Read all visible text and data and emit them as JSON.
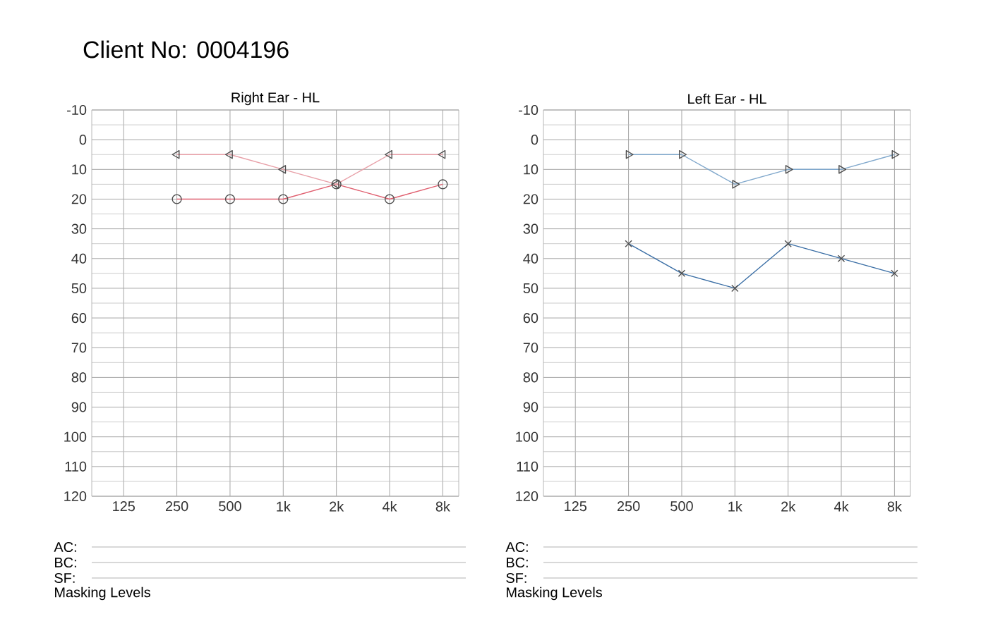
{
  "chart_data": [
    {
      "type": "line",
      "title": "Client No: 0004196",
      "subtitle": "Right Ear - HL",
      "categories": [
        "125",
        "250",
        "500",
        "1k",
        "2k",
        "4k",
        "8k"
      ],
      "series": [
        {
          "color": "#e06070",
          "marker": "circle",
          "values": [
            null,
            20,
            20,
            20,
            15,
            20,
            15
          ]
        },
        {
          "color": "#e8a0a8",
          "marker": "triangle",
          "values": [
            null,
            5,
            5,
            10,
            15,
            5,
            5
          ]
        }
      ],
      "ylim": [
        120,
        -10
      ],
      "yticks": [
        -10,
        0,
        10,
        20,
        30,
        40,
        50,
        60,
        70,
        80,
        90,
        100,
        110,
        120
      ],
      "grid": true,
      "annotations": [
        "AC:",
        "BC:",
        "SF:",
        "Masking Levels"
      ]
    },
    {
      "type": "line",
      "subtitle": "Left Ear - HL",
      "categories": [
        "125",
        "250",
        "500",
        "1k",
        "2k",
        "4k",
        "8k"
      ],
      "series": [
        {
          "color": "#3a6ea5",
          "marker": "cross",
          "values": [
            null,
            35,
            45,
            50,
            35,
            40,
            45
          ]
        },
        {
          "color": "#80a8cc",
          "marker": "triangle",
          "values": [
            null,
            5,
            5,
            15,
            10,
            10,
            5
          ]
        }
      ],
      "ylim": [
        120,
        -10
      ],
      "yticks": [
        -10,
        0,
        10,
        20,
        30,
        40,
        50,
        60,
        70,
        80,
        90,
        100,
        110,
        120
      ],
      "grid": true,
      "annotations": [
        "AC:",
        "BC:",
        "SF:",
        "Masking Levels"
      ]
    }
  ]
}
